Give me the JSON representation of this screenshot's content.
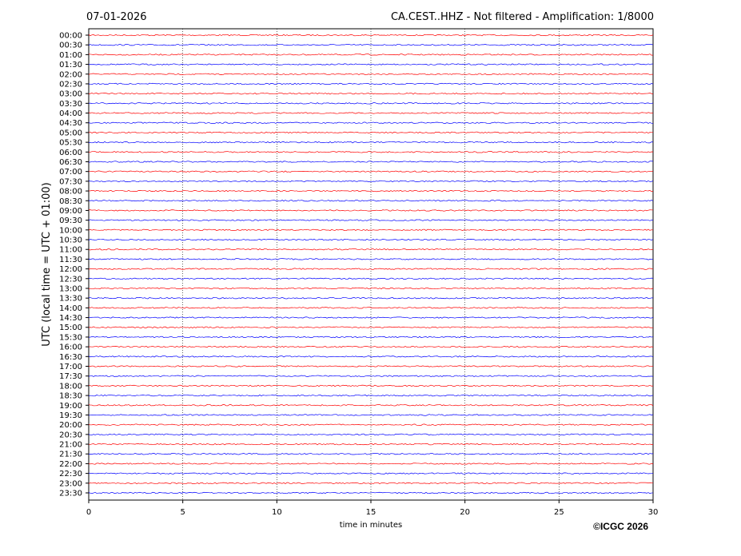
{
  "chart_data": {
    "type": "helicorder",
    "date": "07-01-2026",
    "title": "CA.CEST..HHZ - Not filtered - Amplification: 1/8000",
    "y_label": "UTC (local time = UTC + 01:00)",
    "x_label": "time in minutes",
    "copyright": "©ICGC 2026",
    "categories": [
      "00:00",
      "00:30",
      "01:00",
      "01:30",
      "02:00",
      "02:30",
      "03:00",
      "03:30",
      "04:00",
      "04:30",
      "05:00",
      "05:30",
      "06:00",
      "06:30",
      "07:00",
      "07:30",
      "08:00",
      "08:30",
      "09:00",
      "09:30",
      "10:00",
      "10:30",
      "11:00",
      "11:30",
      "12:00",
      "12:30",
      "13:00",
      "13:30",
      "14:00",
      "14:30",
      "15:00",
      "15:30",
      "16:00",
      "16:30",
      "17:00",
      "17:30",
      "18:00",
      "18:30",
      "19:00",
      "19:30",
      "20:00",
      "20:30",
      "21:00",
      "21:30",
      "22:00",
      "22:30",
      "23:00",
      "23:30"
    ],
    "colors": [
      "#ff0000",
      "#0000ff"
    ],
    "xlim": [
      0,
      30
    ],
    "xticks": [
      0,
      5,
      10,
      15,
      20,
      25,
      30
    ],
    "grid": true
  }
}
